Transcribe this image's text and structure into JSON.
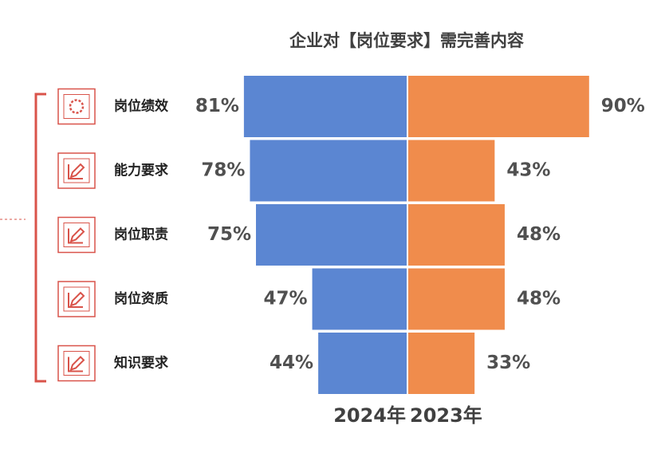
{
  "chart_data": {
    "type": "butterfly",
    "title": "企业对【岗位要求】需完善内容",
    "categories": [
      "岗位绩效",
      "能力要求",
      "岗位职责",
      "岗位资质",
      "知识要求"
    ],
    "series": [
      {
        "name": "2024年",
        "color": "#5b86d2",
        "values": [
          81,
          78,
          75,
          47,
          44
        ],
        "value_labels": [
          "81%",
          "78%",
          "75%",
          "47%",
          "44%"
        ]
      },
      {
        "name": "2023年",
        "color": "#f08c4c",
        "values": [
          90,
          43,
          48,
          48,
          33
        ],
        "value_labels": [
          "90%",
          "43%",
          "48%",
          "48%",
          "33%"
        ]
      }
    ]
  }
}
